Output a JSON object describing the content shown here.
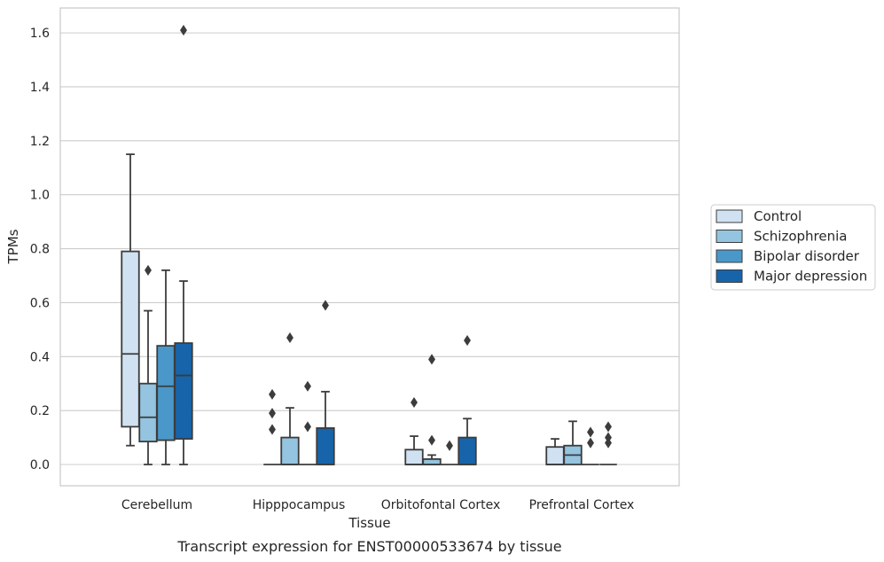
{
  "caption": "Transcript expression for ENST00000533674 by tissue",
  "chart_data": {
    "type": "boxplot",
    "xlabel": "Tissue",
    "ylabel": "TPMs",
    "ylim": [
      -0.08,
      1.69
    ],
    "yticks": [
      0.0,
      0.2,
      0.4,
      0.6,
      0.8,
      1.0,
      1.2,
      1.4,
      1.6
    ],
    "ytick_labels": [
      "0.0",
      "0.2",
      "0.4",
      "0.6",
      "0.8",
      "1.0",
      "1.2",
      "1.4",
      "1.6"
    ],
    "grid": "horizontal",
    "legend_position": "right",
    "categories": [
      "Cerebellum",
      "Hipppocampus",
      "Orbitofontal Cortex",
      "Prefrontal Cortex"
    ],
    "series": [
      {
        "name": "Control",
        "color": "#d0e1f2",
        "boxes": [
          {
            "whislo": 0.07,
            "q1": 0.14,
            "med": 0.41,
            "q3": 0.79,
            "whishi": 1.15,
            "fliers": []
          },
          {
            "whislo": 0.0,
            "q1": 0.0,
            "med": 0.0,
            "q3": 0.0,
            "whishi": 0.0,
            "fliers": [
              0.13,
              0.19,
              0.26
            ]
          },
          {
            "whislo": 0.0,
            "q1": 0.0,
            "med": 0.0,
            "q3": 0.055,
            "whishi": 0.105,
            "fliers": [
              0.23
            ]
          },
          {
            "whislo": 0.0,
            "q1": 0.0,
            "med": 0.0,
            "q3": 0.065,
            "whishi": 0.095,
            "fliers": []
          }
        ]
      },
      {
        "name": "Schizophrenia",
        "color": "#94c4df",
        "boxes": [
          {
            "whislo": 0.0,
            "q1": 0.085,
            "med": 0.175,
            "q3": 0.3,
            "whishi": 0.57,
            "fliers": [
              0.72
            ]
          },
          {
            "whislo": 0.0,
            "q1": 0.0,
            "med": 0.0,
            "q3": 0.1,
            "whishi": 0.21,
            "fliers": [
              0.47
            ]
          },
          {
            "whislo": 0.0,
            "q1": 0.0,
            "med": 0.0,
            "q3": 0.02,
            "whishi": 0.035,
            "fliers": [
              0.09,
              0.39
            ]
          },
          {
            "whislo": 0.0,
            "q1": 0.0,
            "med": 0.035,
            "q3": 0.07,
            "whishi": 0.16,
            "fliers": []
          }
        ]
      },
      {
        "name": "Bipolar disorder",
        "color": "#4a98c9",
        "boxes": [
          {
            "whislo": 0.0,
            "q1": 0.09,
            "med": 0.29,
            "q3": 0.44,
            "whishi": 0.72,
            "fliers": []
          },
          {
            "whislo": 0.0,
            "q1": 0.0,
            "med": 0.0,
            "q3": 0.0,
            "whishi": 0.0,
            "fliers": [
              0.14,
              0.29
            ]
          },
          {
            "whislo": 0.0,
            "q1": 0.0,
            "med": 0.0,
            "q3": 0.0,
            "whishi": 0.0,
            "fliers": [
              0.07
            ]
          },
          {
            "whislo": 0.0,
            "q1": 0.0,
            "med": 0.0,
            "q3": 0.0,
            "whishi": 0.0,
            "fliers": [
              0.08,
              0.12
            ]
          }
        ]
      },
      {
        "name": "Major depression",
        "color": "#1764ab",
        "boxes": [
          {
            "whislo": 0.0,
            "q1": 0.095,
            "med": 0.33,
            "q3": 0.45,
            "whishi": 0.68,
            "fliers": [
              1.61
            ]
          },
          {
            "whislo": 0.0,
            "q1": 0.0,
            "med": 0.0,
            "q3": 0.135,
            "whishi": 0.27,
            "fliers": [
              0.59
            ]
          },
          {
            "whislo": 0.0,
            "q1": 0.0,
            "med": 0.0,
            "q3": 0.1,
            "whishi": 0.17,
            "fliers": [
              0.46
            ]
          },
          {
            "whislo": 0.0,
            "q1": 0.0,
            "med": 0.0,
            "q3": 0.0,
            "whishi": 0.0,
            "fliers": [
              0.08,
              0.1,
              0.14
            ]
          }
        ]
      }
    ]
  }
}
